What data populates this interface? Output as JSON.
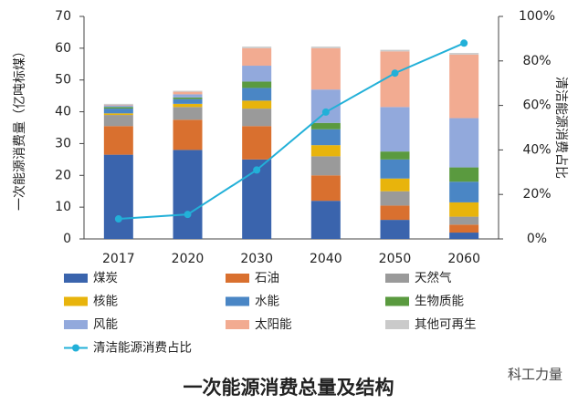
{
  "chart_data": {
    "type": "bar",
    "title": "一次能源消费总量及结构",
    "ylabel": "一次能源消费量（亿吨标煤）",
    "y2label": "清洁能源消费占比",
    "watermark": "科工力量",
    "categories": [
      "2017",
      "2020",
      "2030",
      "2040",
      "2050",
      "2060"
    ],
    "ylim": [
      0,
      70
    ],
    "yticks": [
      0,
      10,
      20,
      30,
      40,
      50,
      60,
      70
    ],
    "y2lim": [
      0,
      100
    ],
    "y2ticks": [
      {
        "value": 0,
        "label": "0%"
      },
      {
        "value": 20,
        "label": "20%"
      },
      {
        "value": 40,
        "label": "40%"
      },
      {
        "value": 60,
        "label": "60%"
      },
      {
        "value": 80,
        "label": "80%"
      },
      {
        "value": 100,
        "label": "100%"
      }
    ],
    "series": [
      {
        "name": "煤炭",
        "color": "#3a64ad",
        "values": [
          26.5,
          28,
          25,
          12,
          6,
          2
        ]
      },
      {
        "name": "石油",
        "color": "#d9702f",
        "values": [
          9,
          9.5,
          10.5,
          8,
          4.5,
          2.5
        ]
      },
      {
        "name": "天然气",
        "color": "#9a9a9a",
        "values": [
          3.5,
          4,
          5.5,
          6,
          4.5,
          2.5
        ]
      },
      {
        "name": "核能",
        "color": "#e8b40c",
        "values": [
          0.5,
          1,
          2.5,
          3.5,
          4,
          4.5
        ]
      },
      {
        "name": "水能",
        "color": "#4a86c5",
        "values": [
          1.5,
          1.5,
          4,
          5,
          6,
          6.5
        ]
      },
      {
        "name": "生物质能",
        "color": "#5a9a3f",
        "values": [
          0.5,
          0.5,
          2,
          2,
          2.5,
          4.5
        ]
      },
      {
        "name": "风能",
        "color": "#92a9dc",
        "values": [
          0.5,
          1,
          5,
          10.5,
          14,
          15.5
        ]
      },
      {
        "name": "太阳能",
        "color": "#f2ab91",
        "values": [
          0.2,
          0.8,
          5.5,
          13,
          17.5,
          20
        ]
      },
      {
        "name": "其他可再生",
        "color": "#cacaca",
        "values": [
          0.3,
          0.3,
          0.5,
          0.5,
          0.5,
          0.5
        ]
      },
      {
        "name": "清洁能源消费占比",
        "color": "#22b0d8",
        "axis": "y2",
        "values": [
          9,
          11,
          31,
          57,
          74.5,
          88
        ]
      }
    ]
  }
}
